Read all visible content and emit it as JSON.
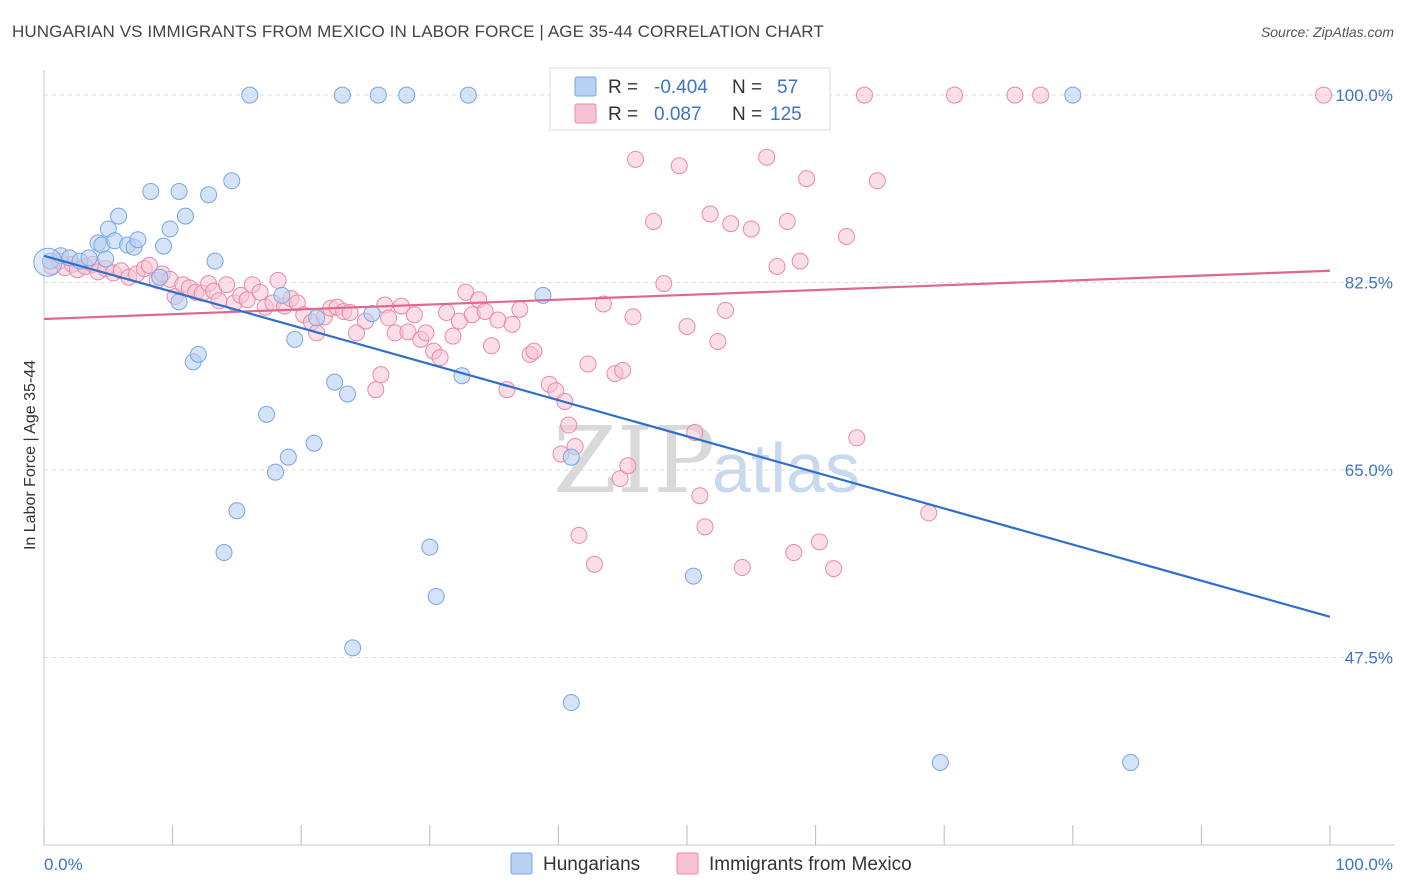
{
  "title": "HUNGARIAN VS IMMIGRANTS FROM MEXICO IN LABOR FORCE | AGE 35-44 CORRELATION CHART",
  "source": "Source: ZipAtlas.com",
  "watermark": {
    "zip": "ZIP",
    "atlas": "atlas"
  },
  "colors": {
    "blue_fill": "#b8d0f2",
    "blue_stroke": "#7aa6e2",
    "blue_line": "#2f6fcc",
    "pink_fill": "#f7c3d3",
    "pink_stroke": "#e98aa9",
    "pink_line": "#e0688f",
    "tick_text": "#3d74c4",
    "grid": "#dddddd"
  },
  "legend": {
    "r_label": "R =",
    "n_label": "N =",
    "rows": [
      {
        "r": "-0.404",
        "n": "57"
      },
      {
        "r": "0.087",
        "n": "125"
      }
    ]
  },
  "chart_data": {
    "type": "scatter",
    "title": "HUNGARIAN VS IMMIGRANTS FROM MEXICO IN LABOR FORCE | AGE 35-44 CORRELATION CHART",
    "xlabel": "",
    "ylabel": "In Labor Force | Age 35-44",
    "xlim": [
      0,
      100
    ],
    "ylim": [
      30,
      101.5
    ],
    "x_tick_labels": [
      {
        "value": 0,
        "label": "0.0%"
      },
      {
        "value": 100,
        "label": "100.0%"
      }
    ],
    "y_ticks": [
      {
        "value": 100,
        "label": "100.0%"
      },
      {
        "value": 82.5,
        "label": "82.5%"
      },
      {
        "value": 65,
        "label": "65.0%"
      },
      {
        "value": 47.5,
        "label": "47.5%"
      }
    ],
    "grid": true,
    "legend_position": "top-center",
    "series": [
      {
        "name": "Hungarians",
        "color": "#b8d0f2",
        "stroke": "#7aa6e2",
        "trend": {
          "x": [
            0,
            100
          ],
          "y": [
            85.0,
            51.3
          ]
        },
        "points": [
          [
            0.5,
            84.5
          ],
          [
            1.3,
            85.0
          ],
          [
            2.0,
            84.8
          ],
          [
            2.8,
            84.5
          ],
          [
            3.5,
            84.8
          ],
          [
            4.2,
            86.2
          ],
          [
            4.5,
            86.0
          ],
          [
            4.8,
            84.7
          ],
          [
            5.0,
            87.5
          ],
          [
            5.5,
            86.4
          ],
          [
            5.8,
            88.7
          ],
          [
            6.5,
            86.0
          ],
          [
            7.0,
            85.8
          ],
          [
            7.3,
            86.5
          ],
          [
            8.3,
            91.0
          ],
          [
            9.0,
            83.0
          ],
          [
            9.3,
            85.9
          ],
          [
            9.8,
            87.5
          ],
          [
            10.5,
            80.7
          ],
          [
            10.5,
            91.0
          ],
          [
            11.0,
            88.7
          ],
          [
            11.6,
            75.1
          ],
          [
            12.0,
            75.8
          ],
          [
            12.8,
            90.7
          ],
          [
            13.3,
            84.5
          ],
          [
            14.0,
            57.3
          ],
          [
            14.6,
            92.0
          ],
          [
            15.0,
            61.2
          ],
          [
            16.0,
            100.0
          ],
          [
            17.3,
            70.2
          ],
          [
            18.0,
            64.8
          ],
          [
            18.5,
            81.3
          ],
          [
            19.0,
            66.2
          ],
          [
            19.5,
            77.2
          ],
          [
            21.0,
            67.5
          ],
          [
            21.2,
            79.2
          ],
          [
            22.6,
            73.2
          ],
          [
            23.2,
            100.0
          ],
          [
            23.6,
            72.1
          ],
          [
            24.0,
            48.4
          ],
          [
            25.5,
            79.6
          ],
          [
            26.0,
            100.0
          ],
          [
            28.2,
            100.0
          ],
          [
            30.0,
            57.8
          ],
          [
            30.5,
            53.2
          ],
          [
            32.5,
            73.8
          ],
          [
            33.0,
            100.0
          ],
          [
            38.8,
            81.3
          ],
          [
            41.0,
            43.3
          ],
          [
            41.0,
            66.2
          ],
          [
            50.5,
            55.1
          ],
          [
            54.3,
            100.0
          ],
          [
            69.7,
            37.7
          ],
          [
            80.0,
            100.0
          ],
          [
            84.5,
            37.7
          ]
        ]
      },
      {
        "name": "Immigrants from Mexico",
        "color": "#f7c3d3",
        "stroke": "#e98aa9",
        "trend": {
          "x": [
            0,
            100
          ],
          "y": [
            79.1,
            83.6
          ]
        },
        "points": [
          [
            0.6,
            84.0
          ],
          [
            1.2,
            84.5
          ],
          [
            1.6,
            83.9
          ],
          [
            2.2,
            84.2
          ],
          [
            2.6,
            83.7
          ],
          [
            3.2,
            84.0
          ],
          [
            3.8,
            84.2
          ],
          [
            4.2,
            83.5
          ],
          [
            4.8,
            83.8
          ],
          [
            5.4,
            83.4
          ],
          [
            6.0,
            83.6
          ],
          [
            6.6,
            83.0
          ],
          [
            7.2,
            83.3
          ],
          [
            7.8,
            83.8
          ],
          [
            8.2,
            84.1
          ],
          [
            8.8,
            82.7
          ],
          [
            9.2,
            83.3
          ],
          [
            9.8,
            82.8
          ],
          [
            10.2,
            81.2
          ],
          [
            10.8,
            82.3
          ],
          [
            11.3,
            82.0
          ],
          [
            11.8,
            81.6
          ],
          [
            12.3,
            81.5
          ],
          [
            12.8,
            82.4
          ],
          [
            13.2,
            81.7
          ],
          [
            13.6,
            80.8
          ],
          [
            14.2,
            82.3
          ],
          [
            14.8,
            80.6
          ],
          [
            15.3,
            81.3
          ],
          [
            15.8,
            80.9
          ],
          [
            16.2,
            82.3
          ],
          [
            16.8,
            81.6
          ],
          [
            17.2,
            80.2
          ],
          [
            17.8,
            80.6
          ],
          [
            18.2,
            82.7
          ],
          [
            18.7,
            80.3
          ],
          [
            19.2,
            81.0
          ],
          [
            19.7,
            80.6
          ],
          [
            20.2,
            79.5
          ],
          [
            20.8,
            78.8
          ],
          [
            21.2,
            77.8
          ],
          [
            21.8,
            79.3
          ],
          [
            22.3,
            80.1
          ],
          [
            22.8,
            80.2
          ],
          [
            23.3,
            79.8
          ],
          [
            23.8,
            79.7
          ],
          [
            24.3,
            77.8
          ],
          [
            25.0,
            78.9
          ],
          [
            25.8,
            72.5
          ],
          [
            26.2,
            73.9
          ],
          [
            26.5,
            80.4
          ],
          [
            26.8,
            79.2
          ],
          [
            27.3,
            77.8
          ],
          [
            27.8,
            80.3
          ],
          [
            28.3,
            77.9
          ],
          [
            28.8,
            79.5
          ],
          [
            29.3,
            77.2
          ],
          [
            29.7,
            77.8
          ],
          [
            30.3,
            76.1
          ],
          [
            30.8,
            75.5
          ],
          [
            31.3,
            79.7
          ],
          [
            31.8,
            77.5
          ],
          [
            32.3,
            78.9
          ],
          [
            32.8,
            81.6
          ],
          [
            33.3,
            79.5
          ],
          [
            33.8,
            80.9
          ],
          [
            34.3,
            79.8
          ],
          [
            34.8,
            76.6
          ],
          [
            35.3,
            79.0
          ],
          [
            36.0,
            72.5
          ],
          [
            36.4,
            78.6
          ],
          [
            37.0,
            80.0
          ],
          [
            37.8,
            75.8
          ],
          [
            38.1,
            76.1
          ],
          [
            39.3,
            73.0
          ],
          [
            39.8,
            72.4
          ],
          [
            40.2,
            66.5
          ],
          [
            40.5,
            71.4
          ],
          [
            40.8,
            69.2
          ],
          [
            41.3,
            67.2
          ],
          [
            41.6,
            58.9
          ],
          [
            42.3,
            74.9
          ],
          [
            42.8,
            56.2
          ],
          [
            43.5,
            80.5
          ],
          [
            44.4,
            74.0
          ],
          [
            44.8,
            64.2
          ],
          [
            45.0,
            74.3
          ],
          [
            45.4,
            65.4
          ],
          [
            45.8,
            79.3
          ],
          [
            46.0,
            94.0
          ],
          [
            47.4,
            88.2
          ],
          [
            47.8,
            100.0
          ],
          [
            48.2,
            82.4
          ],
          [
            49.4,
            93.4
          ],
          [
            50.0,
            78.4
          ],
          [
            50.6,
            68.5
          ],
          [
            51.0,
            62.6
          ],
          [
            51.4,
            59.7
          ],
          [
            51.8,
            88.9
          ],
          [
            52.4,
            77.0
          ],
          [
            53.0,
            79.9
          ],
          [
            53.4,
            88.0
          ],
          [
            54.3,
            55.9
          ],
          [
            55.0,
            87.5
          ],
          [
            55.8,
            100.0
          ],
          [
            56.2,
            94.2
          ],
          [
            57.0,
            84.0
          ],
          [
            57.8,
            88.2
          ],
          [
            58.3,
            57.3
          ],
          [
            58.8,
            84.5
          ],
          [
            59.3,
            92.2
          ],
          [
            60.3,
            58.3
          ],
          [
            61.4,
            55.8
          ],
          [
            62.4,
            86.8
          ],
          [
            63.2,
            68.0
          ],
          [
            63.8,
            100.0
          ],
          [
            64.8,
            92.0
          ],
          [
            68.8,
            61.0
          ],
          [
            70.8,
            100.0
          ],
          [
            75.5,
            100.0
          ],
          [
            77.5,
            100.0
          ],
          [
            99.5,
            100.0
          ]
        ]
      }
    ]
  },
  "bottom_legend": [
    "Hungarians",
    "Immigrants from Mexico"
  ]
}
